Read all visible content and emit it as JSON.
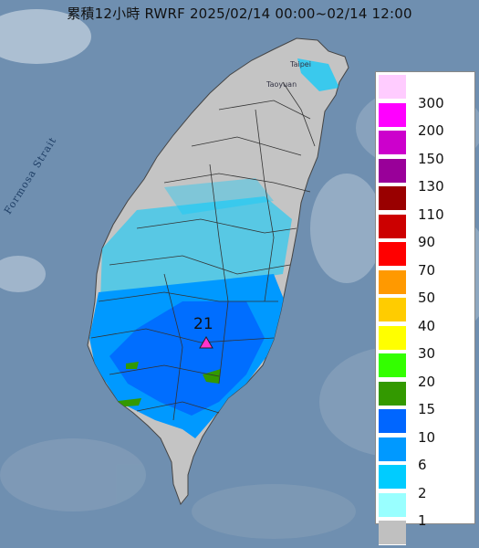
{
  "title": "累積12小時 RWRF 2025/02/14 00:00~02/14 12:00",
  "map": {
    "sea_label": "Formosa Strait",
    "city_labels": [
      "Taipei",
      "Taoyuan"
    ],
    "station": {
      "value": "21",
      "marker": "triangle-marker",
      "color": "#ff33cc"
    }
  },
  "legend": {
    "unit_levels": [
      "300",
      "200",
      "150",
      "130",
      "110",
      "90",
      "70",
      "50",
      "40",
      "30",
      "20",
      "15",
      "10",
      "6",
      "2",
      "1"
    ],
    "colors": [
      "#ffccff",
      "#ff00ff",
      "#cc00cc",
      "#990099",
      "#990000",
      "#cc0000",
      "#ff0000",
      "#ff9900",
      "#ffcc00",
      "#ffff00",
      "#33ff00",
      "#339900",
      "#0066ff",
      "#0099ff",
      "#00ccff",
      "#99ffff",
      "#c0c0c0"
    ]
  },
  "colors": {
    "sea": "#6f8fb0",
    "land": "#c4c4c4",
    "boundary": "#333333"
  }
}
